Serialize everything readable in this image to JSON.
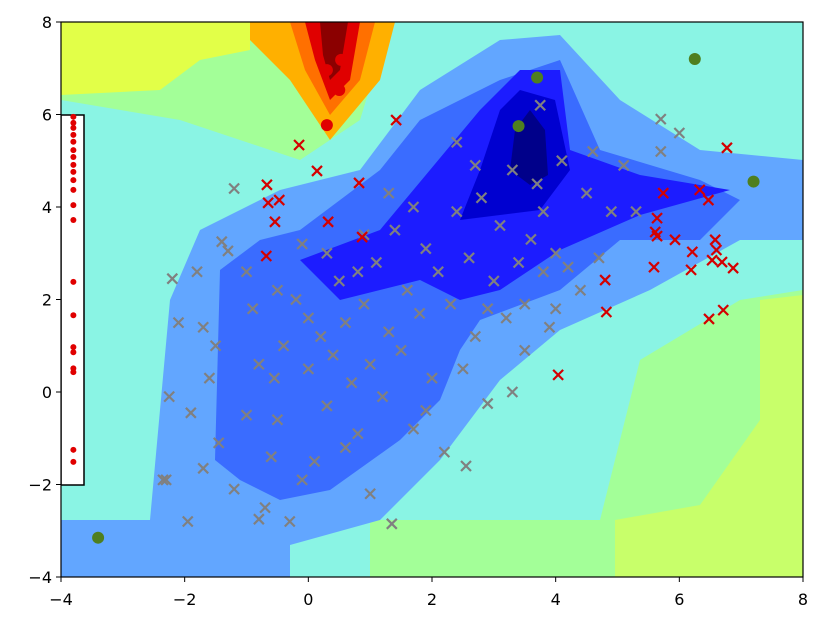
{
  "chart_data": {
    "type": "scatter",
    "xlim": [
      -4,
      8
    ],
    "ylim": [
      -4,
      8
    ],
    "xticks": [
      {
        "value": -4,
        "label": "−4"
      },
      {
        "value": -2,
        "label": "−2"
      },
      0,
      2,
      4,
      6,
      8
    ],
    "yticks": [
      {
        "value": -4,
        "label": "−4"
      },
      {
        "value": -2,
        "label": "−2"
      },
      0,
      2,
      4,
      6,
      8
    ],
    "series": [
      {
        "marker": "x",
        "color": "#808080",
        "marker_size": 5,
        "x": [
          -2.35,
          -2.3,
          -2.25,
          -2.2,
          -2.1,
          -1.8,
          -1.7,
          -1.7,
          -1.6,
          -1.95,
          -1.9,
          -1.45,
          -1.4,
          -1.3,
          -1.2,
          -1.0,
          -0.9,
          -0.8,
          -0.7,
          -0.6,
          -0.5,
          -0.4,
          -0.3,
          -0.2,
          -0.1,
          0.0,
          0.1,
          0.2,
          0.3,
          0.4,
          0.5,
          0.6,
          0.7,
          0.8,
          0.9,
          1.0,
          1.1,
          1.2,
          1.3,
          1.35,
          1.4,
          1.5,
          1.6,
          1.7,
          1.8,
          1.9,
          2.0,
          2.1,
          2.2,
          2.3,
          2.4,
          2.5,
          2.55,
          2.6,
          2.7,
          2.8,
          2.9,
          3.0,
          3.1,
          3.2,
          3.3,
          3.4,
          3.5,
          3.6,
          3.7,
          3.75,
          3.8,
          3.9,
          4.0,
          4.1,
          4.2,
          4.4,
          4.6,
          4.7,
          4.9,
          5.1,
          5.3,
          5.7,
          6.0,
          -0.55,
          -1.0,
          -0.1,
          0.6,
          1.0,
          -0.5,
          0.0,
          0.9,
          1.7,
          2.4,
          1.3,
          0.8,
          2.9,
          3.5,
          4.0,
          3.3,
          -1.5,
          -1.2,
          -0.8,
          0.3,
          1.9,
          2.7,
          3.8,
          4.5,
          5.7
        ],
        "values": [
          -1.9,
          -1.9,
          -0.1,
          2.45,
          1.5,
          2.6,
          -1.65,
          1.4,
          0.3,
          -2.8,
          -0.45,
          -1.1,
          3.25,
          3.05,
          4.4,
          2.6,
          1.8,
          -2.75,
          -2.5,
          -1.4,
          -0.6,
          1.0,
          -2.8,
          2.0,
          3.2,
          0.5,
          -1.5,
          1.2,
          -0.3,
          0.8,
          2.4,
          1.5,
          0.2,
          -0.9,
          1.9,
          0.6,
          2.8,
          -0.1,
          1.3,
          -2.85,
          3.5,
          0.9,
          2.2,
          -0.8,
          1.7,
          3.1,
          0.3,
          2.6,
          -1.3,
          1.9,
          3.9,
          0.5,
          -1.6,
          2.9,
          1.2,
          4.2,
          -0.25,
          2.4,
          3.6,
          1.6,
          4.8,
          2.8,
          1.9,
          3.3,
          4.5,
          6.2,
          2.6,
          1.4,
          3.0,
          5.0,
          2.7,
          2.2,
          5.2,
          2.9,
          3.9,
          4.9,
          3.9,
          5.9,
          5.6,
          0.3,
          -0.5,
          -1.9,
          -1.2,
          -2.2,
          2.2,
          1.6,
          3.4,
          4.0,
          5.4,
          4.3,
          2.6,
          1.8,
          0.9,
          1.8,
          0.0,
          1.0,
          -2.1,
          0.6,
          3.0,
          -0.4,
          4.9,
          3.9,
          4.3,
          5.2
        ]
      },
      {
        "marker": "x",
        "color": "#d40000",
        "marker_size": 5,
        "x": [
          -0.15,
          1.42,
          -0.67,
          0.82,
          0.14,
          -0.47,
          -0.65,
          -0.54,
          0.32,
          0.87,
          -0.68,
          4.04,
          4.8,
          4.82,
          5.74,
          6.33,
          6.47,
          6.77,
          5.64,
          5.61,
          5.64,
          5.93,
          6.21,
          5.59,
          6.19,
          6.58,
          6.6,
          6.53,
          6.69,
          6.87,
          6.71,
          6.48
        ],
        "values": [
          5.34,
          5.88,
          4.48,
          4.52,
          4.78,
          4.15,
          4.09,
          3.68,
          3.68,
          3.35,
          2.94,
          0.37,
          2.42,
          1.73,
          4.3,
          4.37,
          4.15,
          5.28,
          3.76,
          3.46,
          3.37,
          3.29,
          3.03,
          2.7,
          2.64,
          3.29,
          3.07,
          2.85,
          2.81,
          2.68,
          1.77,
          1.58
        ]
      },
      {
        "marker": "o",
        "color": "#e00000",
        "marker_size": 6,
        "x": [
          0.3,
          0.3,
          0.5,
          0.53
        ],
        "values": [
          5.77,
          6.96,
          6.53,
          7.18
        ]
      },
      {
        "marker": "o",
        "color": "#e00000",
        "marker_size": 3,
        "x": [
          -3.8,
          -3.8,
          -3.8,
          -3.8,
          -3.8,
          -3.8,
          -3.8,
          -3.8,
          -3.8,
          -3.8,
          -3.8,
          -3.8,
          -3.8,
          -3.8,
          -3.8,
          -3.8,
          -3.8,
          -3.8,
          -3.8,
          -3.8,
          -3.8
        ],
        "values": [
          5.95,
          5.82,
          5.71,
          5.56,
          5.41,
          5.23,
          5.08,
          4.91,
          4.76,
          4.58,
          4.37,
          4.04,
          3.72,
          2.38,
          1.66,
          0.97,
          0.86,
          0.51,
          0.43,
          -1.25,
          -1.51
        ]
      },
      {
        "marker": "o",
        "color": "#4f7f1f",
        "marker_size": 6,
        "x": [
          -3.4,
          3.7,
          3.4,
          6.25,
          7.2
        ],
        "values": [
          -3.15,
          6.8,
          5.75,
          7.2,
          4.55
        ]
      }
    ]
  }
}
